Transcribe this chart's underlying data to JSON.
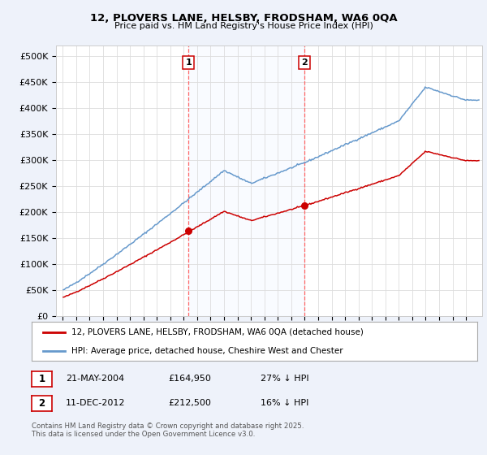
{
  "title": "12, PLOVERS LANE, HELSBY, FRODSHAM, WA6 0QA",
  "subtitle": "Price paid vs. HM Land Registry's House Price Index (HPI)",
  "ylabel_ticks": [
    "£0",
    "£50K",
    "£100K",
    "£150K",
    "£200K",
    "£250K",
    "£300K",
    "£350K",
    "£400K",
    "£450K",
    "£500K"
  ],
  "ytick_values": [
    0,
    50000,
    100000,
    150000,
    200000,
    250000,
    300000,
    350000,
    400000,
    450000,
    500000
  ],
  "ylim": [
    0,
    520000
  ],
  "sale1_year_float": 2004.37,
  "sale1_price": 164950,
  "sale2_year_float": 2012.95,
  "sale2_price": 212500,
  "sale1_date": "21-MAY-2004",
  "sale1_hpi_diff": "27% ↓ HPI",
  "sale2_date": "11-DEC-2012",
  "sale2_hpi_diff": "16% ↓ HPI",
  "line_property_color": "#cc0000",
  "line_hpi_color": "#6699cc",
  "vline_color": "#ff6666",
  "legend1": "12, PLOVERS LANE, HELSBY, FRODSHAM, WA6 0QA (detached house)",
  "legend2": "HPI: Average price, detached house, Cheshire West and Chester",
  "footer": "Contains HM Land Registry data © Crown copyright and database right 2025.\nThis data is licensed under the Open Government Licence v3.0.",
  "bg_color": "#eef2fa",
  "plot_bg_color": "#ffffff",
  "xlim_left": 1994.5,
  "xlim_right": 2026.2
}
